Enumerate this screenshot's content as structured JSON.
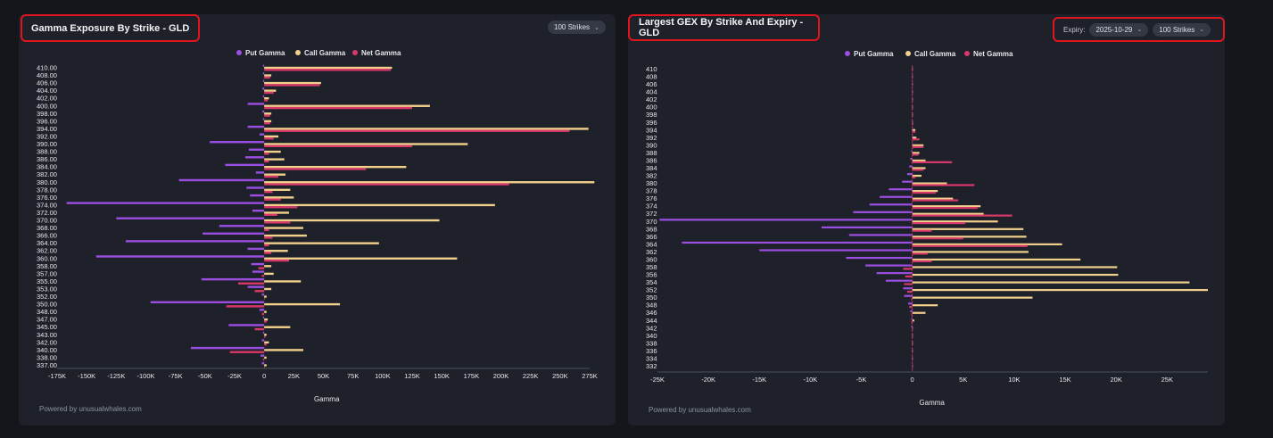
{
  "left": {
    "title": "Gamma Exposure By Strike - GLD",
    "strikes_label": "100 Strikes",
    "footer": "Powered by unusualwhales.com"
  },
  "right": {
    "title": "Largest GEX By Strike And Expiry - GLD",
    "expiry_label": "Expiry:",
    "expiry_value": "2025-10-29",
    "strikes_label": "100 Strikes",
    "footer": "Powered by unusualwhales.com"
  },
  "colors": {
    "put": "#9b4ee2",
    "call": "#f1d08c",
    "net": "#d8386a",
    "bg": "#1e2129",
    "page": "#14161c"
  },
  "icons": {
    "dropdown": "chevron-down-icon"
  },
  "chart_data": [
    {
      "type": "bar",
      "orientation": "horizontal",
      "xlabel": "Gamma",
      "xlim": [
        -175000,
        275000
      ],
      "xticks": [
        -175000,
        -150000,
        -125000,
        -100000,
        -75000,
        -50000,
        -25000,
        0,
        25000,
        50000,
        75000,
        100000,
        125000,
        150000,
        175000,
        200000,
        225000,
        250000,
        275000
      ],
      "xtick_labels": [
        "-175K",
        "-150K",
        "-125K",
        "-100K",
        "-75K",
        "-50K",
        "-25K",
        "0",
        "25K",
        "50K",
        "75K",
        "100K",
        "125K",
        "150K",
        "175K",
        "200K",
        "225K",
        "250K",
        "275K"
      ],
      "ytick_labels": [
        "410.00",
        "408.00",
        "406.00",
        "404.00",
        "402.00",
        "400.00",
        "398.00",
        "396.00",
        "394.00",
        "392.00",
        "390.00",
        "388.00",
        "386.00",
        "384.00",
        "382.00",
        "380.00",
        "378.00",
        "376.00",
        "374.00",
        "372.00",
        "370.00",
        "368.00",
        "366.00",
        "364.00",
        "362.00",
        "360.00",
        "358.00",
        "357.00",
        "355.00",
        "353.00",
        "352.00",
        "350.00",
        "348.00",
        "347.00",
        "345.00",
        "343.00",
        "342.00",
        "340.00",
        "338.00",
        "337.00"
      ],
      "legend": [
        "Put Gamma",
        "Call Gamma",
        "Net Gamma"
      ],
      "legend_position": "top-center",
      "grid": false,
      "series": [
        {
          "name": "Put Gamma",
          "values": [
            -1000,
            -1000,
            -1000,
            -1500,
            -1000,
            -14000,
            -1500,
            -1000,
            -14000,
            -4000,
            -46000,
            -13000,
            -16000,
            -33000,
            -7000,
            -72000,
            -15000,
            -12000,
            -167000,
            -10000,
            -125000,
            -38000,
            -52000,
            -117000,
            -14000,
            -142000,
            -11000,
            -10000,
            -53000,
            -14000,
            -2000,
            -96000,
            -4000,
            -1000,
            -30000,
            -1000,
            -2000,
            -62000,
            -3000,
            -2000
          ]
        },
        {
          "name": "Call Gamma",
          "values": [
            108000,
            6000,
            48000,
            10000,
            4000,
            140000,
            6000,
            6000,
            274000,
            12000,
            172000,
            14000,
            17000,
            120000,
            18000,
            279000,
            22000,
            25000,
            195000,
            21000,
            148000,
            33000,
            36000,
            97000,
            20000,
            163000,
            6000,
            8000,
            31000,
            6000,
            2000,
            64000,
            2000,
            3000,
            22000,
            2000,
            4000,
            33000,
            2000,
            2000
          ]
        },
        {
          "name": "Net Gamma",
          "values": [
            107000,
            5000,
            47000,
            8000,
            3000,
            125000,
            5000,
            5000,
            258000,
            8000,
            125000,
            4000,
            4000,
            86000,
            12000,
            207000,
            7000,
            14000,
            28000,
            11000,
            22000,
            4000,
            7000,
            4000,
            6000,
            21000,
            -5000,
            -2000,
            -22000,
            -8000,
            0,
            -32000,
            -2000,
            2000,
            -8000,
            1000,
            2000,
            -29000,
            -1000,
            0
          ]
        }
      ]
    },
    {
      "type": "bar",
      "orientation": "horizontal",
      "xlabel": "Gamma",
      "xlim": [
        -25000,
        29000
      ],
      "xticks": [
        -25000,
        -20000,
        -15000,
        -10000,
        -5000,
        0,
        5000,
        10000,
        15000,
        20000,
        25000
      ],
      "xtick_labels": [
        "-25K",
        "-20K",
        "-15K",
        "-10K",
        "-5K",
        "0",
        "5K",
        "10K",
        "15K",
        "20K",
        "25K"
      ],
      "ytick_labels": [
        "410",
        "408",
        "406",
        "404",
        "402",
        "400",
        "398",
        "396",
        "394",
        "392",
        "390",
        "388",
        "386",
        "384",
        "382",
        "380",
        "378",
        "376",
        "374",
        "372",
        "370",
        "368",
        "366",
        "364",
        "362",
        "360",
        "358",
        "356",
        "354",
        "352",
        "350",
        "348",
        "346",
        "344",
        "342",
        "340",
        "338",
        "336",
        "334",
        "332"
      ],
      "legend": [
        "Put Gamma",
        "Call Gamma",
        "Net Gamma"
      ],
      "legend_position": "top-center",
      "grid": false,
      "series": [
        {
          "name": "Put Gamma",
          "values": [
            0,
            0,
            0,
            0,
            0,
            0,
            0,
            0,
            0,
            0,
            0,
            -100,
            -200,
            -300,
            -500,
            -1000,
            -2300,
            -3200,
            -4200,
            -5800,
            -24800,
            -8900,
            -6200,
            -22600,
            -15000,
            -6500,
            -4600,
            -3500,
            -2600,
            -900,
            -800,
            -400,
            -200,
            -100,
            -100,
            0,
            0,
            0,
            0,
            0
          ]
        },
        {
          "name": "Call Gamma",
          "values": [
            0,
            0,
            0,
            0,
            0,
            0,
            0,
            0,
            300,
            400,
            1100,
            700,
            1300,
            1300,
            900,
            3400,
            2500,
            4000,
            6700,
            7000,
            8400,
            10900,
            11200,
            14700,
            11400,
            16500,
            20100,
            20200,
            27200,
            29000,
            11800,
            2500,
            1300,
            200,
            0,
            0,
            0,
            0,
            0,
            0
          ]
        },
        {
          "name": "Net Gamma",
          "values": [
            0,
            0,
            0,
            0,
            0,
            0,
            0,
            100,
            300,
            700,
            1100,
            600,
            3900,
            1100,
            300,
            6100,
            2300,
            4500,
            6400,
            9800,
            5200,
            1900,
            5000,
            11300,
            1500,
            1900,
            -900,
            -700,
            -800,
            -500,
            -100,
            -300,
            -100,
            -100,
            0,
            0,
            0,
            0,
            0,
            0
          ]
        }
      ]
    }
  ]
}
